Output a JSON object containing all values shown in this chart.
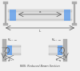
{
  "bg_color": "#f0f0f0",
  "title": "RBS: Reduced Beam Section",
  "beam_color": "#c8c8c8",
  "column_color": "#b0b0b0",
  "flange_color": "#d8d8d8",
  "blue_color": "#5599ee",
  "arrow_color": "#666666",
  "text_color": "#444444",
  "dim_color": "#555555"
}
